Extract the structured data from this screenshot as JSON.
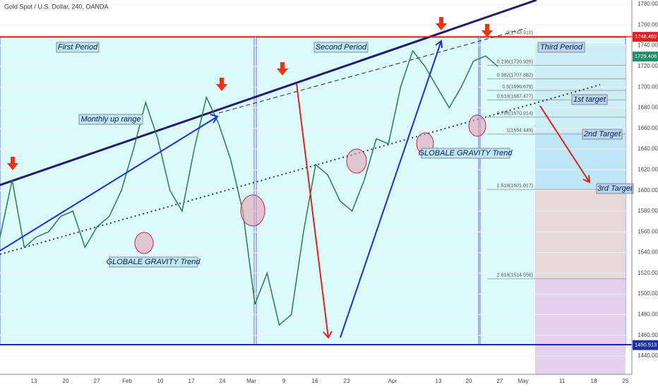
{
  "header": {
    "title": "Gold Spot / U.S. Dollar, 240, OANDA"
  },
  "price_axis": {
    "ylim": [
      1440,
      1780
    ],
    "ticks": [
      {
        "value": 1780,
        "label": "1780.000"
      },
      {
        "value": 1760,
        "label": "1760.000"
      },
      {
        "value": 1740,
        "label": "1740.000"
      },
      {
        "value": 1720,
        "label": "1720.000"
      },
      {
        "value": 1700,
        "label": "1700.000"
      },
      {
        "value": 1680,
        "label": "1680.000"
      },
      {
        "value": 1660,
        "label": "1660.000"
      },
      {
        "value": 1640,
        "label": "1640.000"
      },
      {
        "value": 1620,
        "label": "1620.000"
      },
      {
        "value": 1600,
        "label": "1600.000"
      },
      {
        "value": 1580,
        "label": "1580.000"
      },
      {
        "value": 1560,
        "label": "1560.000"
      },
      {
        "value": 1540,
        "label": "1540.000"
      },
      {
        "value": 1520,
        "label": "1520.000"
      },
      {
        "value": 1500,
        "label": "1500.000"
      },
      {
        "value": 1480,
        "label": "1480.000"
      },
      {
        "value": 1460,
        "label": "1460.000"
      },
      {
        "value": 1440,
        "label": "1440.000"
      }
    ],
    "badges": [
      1748.469,
      1729.406,
      1450.513
    ]
  },
  "time_axis": {
    "labels": [
      "13",
      "20",
      "27",
      "Feb",
      "10",
      "17",
      "24",
      "Mar",
      "9",
      "16",
      "23",
      "Apr",
      "13",
      "20",
      "27",
      "May",
      "11",
      "18",
      "25"
    ]
  },
  "price_path": [
    1555,
    1610,
    1545,
    1555,
    1560,
    1575,
    1580,
    1545,
    1565,
    1575,
    1600,
    1640,
    1685,
    1650,
    1600,
    1580,
    1640,
    1690,
    1665,
    1630,
    1580,
    1490,
    1520,
    1470,
    1480,
    1560,
    1625,
    1615,
    1590,
    1580,
    1610,
    1650,
    1645,
    1700,
    1735,
    1720,
    1700,
    1680,
    1700,
    1725,
    1730,
    1720
  ],
  "annotations": {
    "first_period": "First Period",
    "second_period": "Second Period",
    "third_period": "Third Period",
    "monthly": "Monthly up range",
    "gravity_1": "GLOBALE GRAVITY Trend",
    "gravity_2": "GLOBALE GRAVITY Trend",
    "target_1": "1st target",
    "target_2": "2nd Target",
    "target_3": "3rd Target"
  },
  "fib_levels": [
    {
      "price": 1748.91,
      "label": "0(1748.910)"
    },
    {
      "price": 1720.926,
      "label": "0.236(1720.926)"
    },
    {
      "price": 1707.882,
      "label": "0.382(1707.882)"
    },
    {
      "price": 1696.679,
      "label": "0.5(1696.679)"
    },
    {
      "price": 1687.477,
      "label": "0.618(1687.477)"
    },
    {
      "price": 1670.914,
      "label": "0.786(1670.914)"
    },
    {
      "price": 1654.449,
      "label": "1(1654.449)"
    },
    {
      "price": 1601.017,
      "label": "1.618(1601.017)"
    },
    {
      "price": 1514.556,
      "label": "2.618(1514.556)"
    }
  ]
}
